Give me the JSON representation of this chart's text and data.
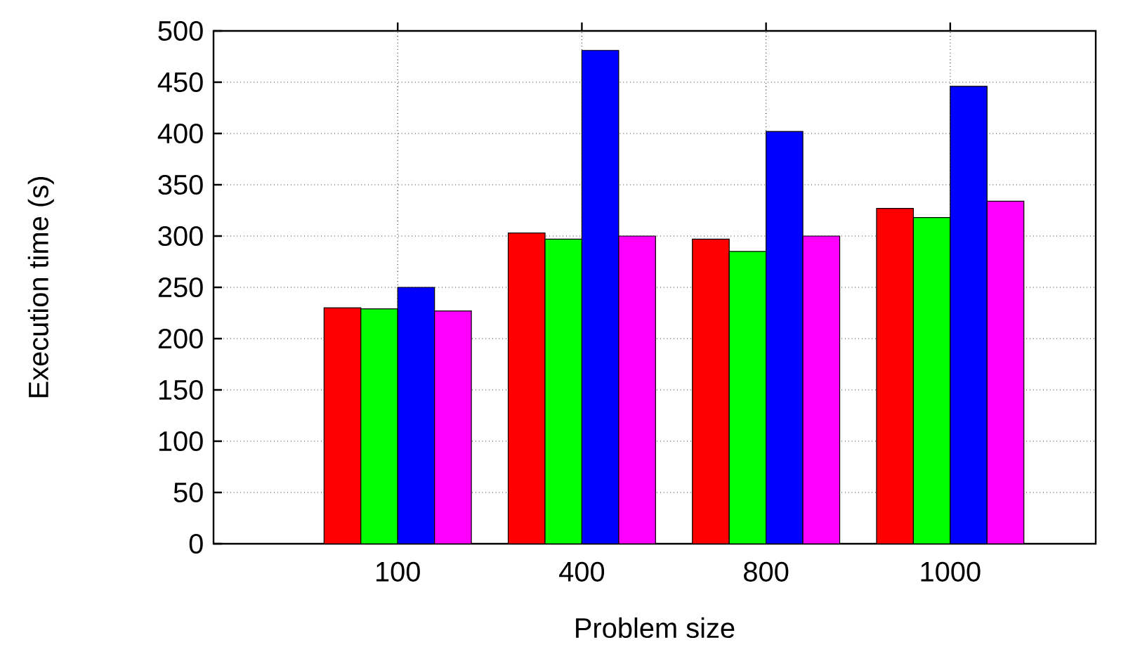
{
  "chart_data": {
    "type": "bar",
    "xlabel": "Problem size",
    "ylabel": "Execution time (s)",
    "categories": [
      "100",
      "400",
      "800",
      "1000"
    ],
    "series": [
      {
        "color": "#ff0000",
        "values": [
          230,
          303,
          297,
          327
        ]
      },
      {
        "color": "#00ff00",
        "values": [
          229,
          297,
          285,
          318
        ]
      },
      {
        "color": "#0000ff",
        "values": [
          250,
          481,
          402,
          446
        ]
      },
      {
        "color": "#ff00ff",
        "values": [
          227,
          300,
          300,
          334
        ]
      }
    ],
    "ylim": [
      0,
      500
    ],
    "yticks": [
      0,
      50,
      100,
      150,
      200,
      250,
      300,
      350,
      400,
      450,
      500
    ],
    "grid": true
  }
}
